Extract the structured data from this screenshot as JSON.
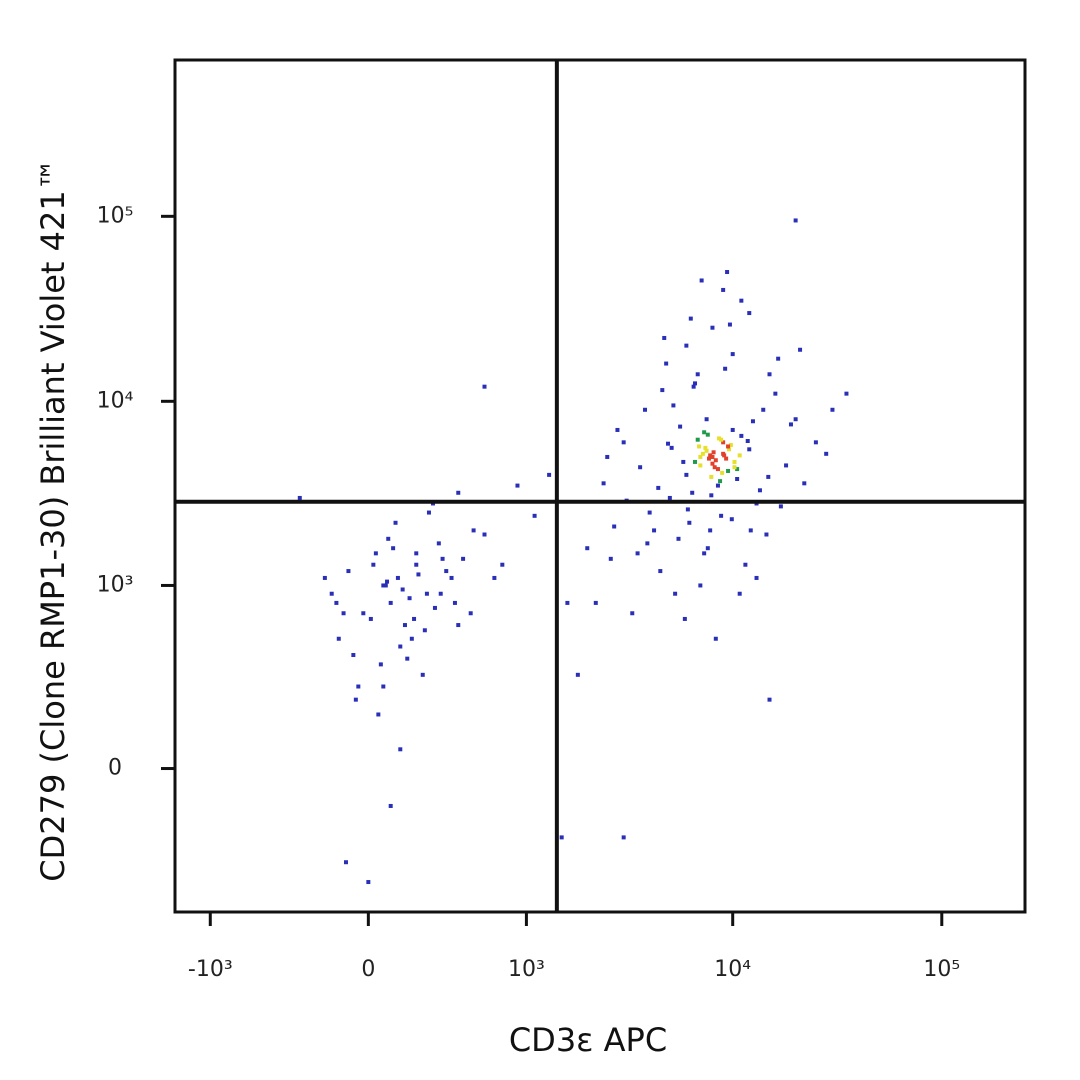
{
  "chart_data": {
    "type": "scatter",
    "x_label": "CD3ε APC",
    "y_label": "CD279 (Clone RMP1-30) Brilliant Violet 421™",
    "xscale": "biexponential",
    "yscale": "biexponential",
    "xlim": [
      -1500,
      250000
    ],
    "ylim": [
      -600,
      700000
    ],
    "xticks": [
      {
        "value": -1000,
        "label": "-10³"
      },
      0,
      {
        "value": 1000,
        "label": "10³"
      },
      {
        "value": 10000,
        "label": "10⁴"
      },
      {
        "value": 100000,
        "label": "10⁵"
      }
    ],
    "yticks": [
      0,
      {
        "value": 1000,
        "label": "10³"
      },
      {
        "value": 10000,
        "label": "10⁴"
      },
      {
        "value": 100000,
        "label": "10⁵"
      }
    ],
    "quadrants": {
      "x": 1420,
      "y": 2860
    },
    "colormap": [
      "#2a2fb8",
      "#1f9a4a",
      "#e6e02a",
      "#e2402a"
    ],
    "x": [
      -150,
      -80,
      -20,
      30,
      60,
      90,
      120,
      150,
      200,
      250,
      310,
      380,
      450,
      520,
      -120,
      -60,
      10,
      50,
      80,
      110,
      140,
      180,
      230,
      290,
      350,
      420,
      -180,
      -100,
      -40,
      20,
      70,
      100,
      130,
      170,
      210,
      260,
      330,
      400,
      600,
      750,
      -50,
      40,
      90,
      160,
      240,
      320,
      500,
      680,
      -90,
      0,
      60,
      130,
      200,
      280,
      420,
      900,
      1100,
      -130,
      75,
      190,
      8000,
      9000,
      7000,
      10000,
      6000,
      12000,
      8500,
      7500,
      9500,
      11000,
      5000,
      14000,
      4000,
      16000,
      3000,
      20000,
      6500,
      7800,
      9200,
      10500,
      3500,
      4500,
      5500,
      13000,
      18000,
      25000,
      30000,
      2500,
      2200,
      7000,
      6000,
      8000,
      10000,
      12000,
      15000,
      9000,
      11000,
      4800,
      3800,
      2800,
      7200,
      8300,
      9800,
      6800,
      5800,
      10500,
      13500,
      17000,
      22000,
      28000,
      4200,
      3300,
      2600,
      6200,
      7600,
      8800,
      11500,
      14500,
      19000,
      35000,
      8100,
      7700,
      9100,
      8600,
      6900,
      10200,
      7300,
      9600,
      8900,
      7900,
      5200,
      6600,
      12500,
      16500,
      4400,
      3100,
      5900,
      8300,
      10800,
      13000,
      4700,
      6300,
      7100,
      9400,
      2400,
      3600,
      5100,
      6800,
      9700,
      21000,
      8200,
      7400,
      8700,
      9300,
      7600,
      6400,
      10800,
      11800,
      5600,
      4900,
      6100,
      7900,
      9900,
      3900,
      2700,
      5300,
      12200,
      14800,
      4600,
      7300,
      8000,
      9000,
      7500,
      8500,
      7000,
      9500,
      6600,
      10200,
      8800,
      7800,
      1600,
      1800,
      1300,
      -300,
      1500,
      20000,
      3000,
      2000,
      600,
      15000
    ],
    "y": [
      900,
      1200,
      700,
      1500,
      1000,
      800,
      1100,
      600,
      1300,
      900,
      1700,
      1100,
      1400,
      2000,
      500,
      400,
      650,
      350,
      1800,
      2200,
      950,
      500,
      300,
      750,
      1200,
      600,
      1100,
      700,
      250,
      1300,
      1000,
      1600,
      450,
      850,
      1150,
      2500,
      1400,
      800,
      1900,
      1300,
      200,
      150,
      -100,
      380,
      560,
      900,
      700,
      1100,
      -300,
      -400,
      250,
      50,
      1500,
      2800,
      3200,
      3500,
      2400,
      800,
      1050,
      650,
      5000,
      6000,
      4500,
      7000,
      4000,
      5500,
      3500,
      8000,
      4200,
      6500,
      3000,
      9000,
      2500,
      11000,
      6000,
      8000,
      12000,
      2000,
      15000,
      3800,
      1500,
      1200,
      1800,
      2800,
      4500,
      6000,
      9000,
      5000,
      800,
      1000,
      20000,
      25000,
      18000,
      30000,
      14000,
      40000,
      35000,
      16000,
      9000,
      7000,
      5200,
      4800,
      5800,
      6200,
      4700,
      4300,
      3300,
      2700,
      3600,
      5200,
      2000,
      700,
      1400,
      2200,
      1600,
      2400,
      1300,
      1900,
      7500,
      11000,
      5300,
      4900,
      5100,
      6300,
      5700,
      4700,
      6800,
      5500,
      4100,
      3900,
      9500,
      12500,
      7800,
      17000,
      3400,
      2900,
      650,
      500,
      900,
      1100,
      22000,
      28000,
      45000,
      50000,
      3600,
      4400,
      5600,
      14000,
      26000,
      19000,
      4400,
      5600,
      3700,
      4900,
      6600,
      3200,
      5100,
      6100,
      7300,
      5900,
      2600,
      3100,
      2300,
      1700,
      2100,
      900,
      2000,
      3900,
      11500,
      1500,
      4600,
      5200,
      5400,
      4300,
      5000,
      5700,
      4700,
      4400,
      6200,
      5100,
      800,
      300,
      4000,
      3000,
      -200,
      95000,
      -200,
      1600,
      12000,
      200
    ]
  }
}
